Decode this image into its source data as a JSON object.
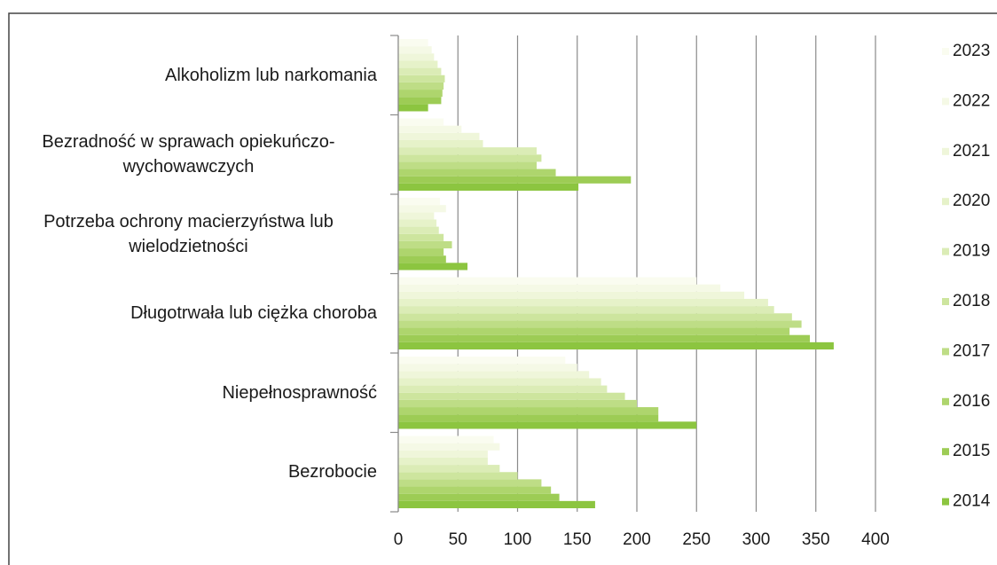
{
  "chart_data": {
    "type": "bar",
    "orientation": "horizontal",
    "categories": [
      "Alkoholizm lub narkomania",
      "Bezradność w sprawach opiekuńczo-wychowawczych",
      "Potrzeba ochrony macierzyństwa lub wielodzietności",
      "Długotrwała lub ciężka choroba",
      "Niepełnosprawność",
      "Bezrobocie"
    ],
    "series": [
      {
        "name": "2014",
        "color": "#8cc540",
        "values": [
          25,
          151,
          58,
          365,
          250,
          165
        ]
      },
      {
        "name": "2015",
        "color": "#9dcc55",
        "values": [
          36,
          195,
          40,
          345,
          218,
          135
        ]
      },
      {
        "name": "2016",
        "color": "#aed56d",
        "values": [
          37,
          132,
          38,
          328,
          218,
          128
        ]
      },
      {
        "name": "2017",
        "color": "#bedd86",
        "values": [
          38,
          116,
          45,
          338,
          200,
          120
        ]
      },
      {
        "name": "2018",
        "color": "#cde59e",
        "values": [
          39,
          120,
          38,
          330,
          190,
          100
        ]
      },
      {
        "name": "2019",
        "color": "#dbecb6",
        "values": [
          36,
          116,
          34,
          315,
          175,
          85
        ]
      },
      {
        "name": "2020",
        "color": "#e6f2c9",
        "values": [
          33,
          71,
          32,
          310,
          170,
          75
        ]
      },
      {
        "name": "2021",
        "color": "#eff6da",
        "values": [
          30,
          68,
          30,
          290,
          160,
          75
        ]
      },
      {
        "name": "2022",
        "color": "#f5f9e6",
        "values": [
          28,
          53,
          40,
          270,
          150,
          85
        ]
      },
      {
        "name": "2023",
        "color": "#fafcf0",
        "values": [
          25,
          38,
          35,
          250,
          140,
          80
        ]
      }
    ],
    "xlim": [
      0,
      400
    ],
    "xticks": [
      0,
      50,
      100,
      150,
      200,
      250,
      300,
      350,
      400
    ],
    "grid": true,
    "legend": "right"
  }
}
